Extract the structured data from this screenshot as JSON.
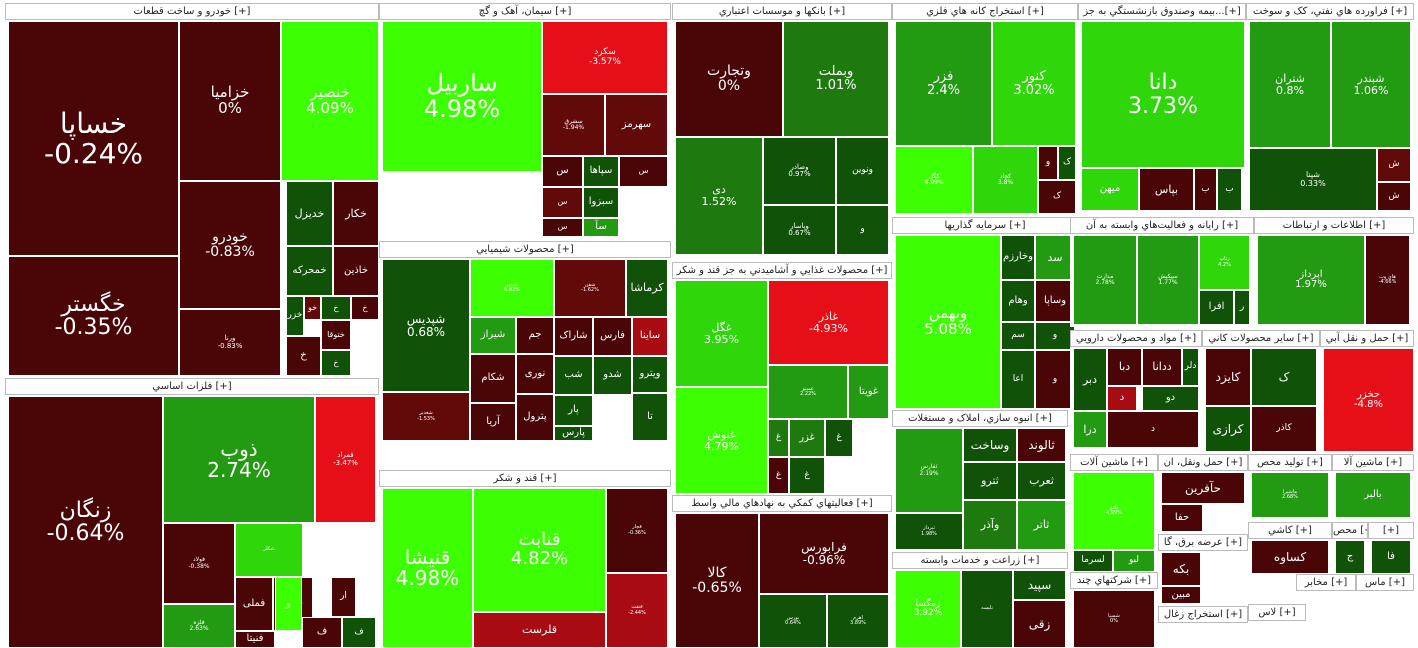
{
  "colors": {
    "g5": "#3cff00",
    "g4": "#2fd60a",
    "g3": "#229a12",
    "g2": "#1e7a0e",
    "g1": "#0f5208",
    "r1": "#4a0606",
    "r2": "#620a0a",
    "r3": "#a80c12",
    "r4": "#e60f18"
  },
  "sectors": [
    {
      "title": "خودرو و ساخت قطعات [+]",
      "tiles": [
        {
          "name": "خساپا",
          "pct": "-0.24%",
          "c": "r1"
        },
        {
          "name": "خگستر",
          "pct": "-0.35%",
          "c": "r1"
        },
        {
          "name": "خزامیا",
          "pct": "0%",
          "c": "r1"
        },
        {
          "name": "خنصیر",
          "pct": "4.09%",
          "c": "g5"
        },
        {
          "name": "خودرو",
          "pct": "-0.83%",
          "c": "r1"
        },
        {
          "name": "ورنا",
          "pct": "-0.83%",
          "c": "r1"
        },
        {
          "name": "خکار",
          "pct": "",
          "c": "r1"
        },
        {
          "name": "خدیزل",
          "pct": "",
          "c": "g1"
        },
        {
          "name": "خاذین",
          "pct": "",
          "c": "r1"
        },
        {
          "name": "خمحرکه",
          "pct": "",
          "c": "g1"
        },
        {
          "name": "خو",
          "pct": "",
          "c": "r2"
        },
        {
          "name": "خ",
          "pct": "",
          "c": "r1"
        },
        {
          "name": "خزر",
          "pct": "",
          "c": "g1"
        },
        {
          "name": "خ",
          "pct": "",
          "c": "g1"
        },
        {
          "name": "خ",
          "pct": "",
          "c": "r1"
        },
        {
          "name": "ختوقا",
          "pct": "",
          "c": "r1"
        },
        {
          "name": "خ",
          "pct": "",
          "c": "g1"
        }
      ]
    },
    {
      "title": "سیمان، آهک و گچ [+]",
      "tiles": [
        {
          "name": "ساربیل",
          "pct": "4.98%",
          "c": "g5"
        },
        {
          "name": "سکرد",
          "pct": "-3.57%",
          "c": "r4"
        },
        {
          "name": "سشرق",
          "pct": "-1.94%",
          "c": "r2"
        },
        {
          "name": "سهرمز",
          "pct": "",
          "c": "r2"
        },
        {
          "name": "س",
          "pct": "",
          "c": "r1"
        },
        {
          "name": "سپاها",
          "pct": "",
          "c": "g1"
        },
        {
          "name": "س",
          "pct": "",
          "c": "r1"
        },
        {
          "name": "س",
          "pct": "",
          "c": "r2"
        },
        {
          "name": "سبزوا",
          "pct": "",
          "c": "g1"
        },
        {
          "name": "سآ",
          "pct": "",
          "c": "g3"
        },
        {
          "name": "س",
          "pct": "",
          "c": "r1"
        }
      ]
    },
    {
      "title": "بانکها و موسسات اعتباري [+]",
      "tiles": [
        {
          "name": "وتجارت",
          "pct": "0%",
          "c": "r1"
        },
        {
          "name": "وبملت",
          "pct": "1.01%",
          "c": "g2"
        },
        {
          "name": "دی",
          "pct": "1.52%",
          "c": "g2"
        },
        {
          "name": "وصادر",
          "pct": "0.97%",
          "c": "g1"
        },
        {
          "name": "ونوین",
          "pct": "",
          "c": "g1"
        },
        {
          "name": "وپاسار",
          "pct": "0.67%",
          "c": "g1"
        },
        {
          "name": "و",
          "pct": "",
          "c": "g1"
        }
      ]
    },
    {
      "title": "استخراج کانه هاي فلزي [+]",
      "tiles": [
        {
          "name": "فزر",
          "pct": "2.4%",
          "c": "g3"
        },
        {
          "name": "کنور",
          "pct": "3.02%",
          "c": "g4"
        },
        {
          "name": "کگل",
          "pct": "4.99%",
          "c": "g5"
        },
        {
          "name": "کچاد",
          "pct": "3.8%",
          "c": "g4"
        },
        {
          "name": "و",
          "pct": "",
          "c": "r1"
        },
        {
          "name": "ک",
          "pct": "",
          "c": "g1"
        },
        {
          "name": "ک",
          "pct": "",
          "c": "r1"
        }
      ]
    },
    {
      "title": "بیمه وصندوق بازنشستگي به جز...[+]",
      "tiles": [
        {
          "name": "دانا",
          "pct": "3.73%",
          "c": "g4"
        },
        {
          "name": "میهن",
          "pct": "",
          "c": "g4"
        },
        {
          "name": "بپاس",
          "pct": "",
          "c": "r1"
        },
        {
          "name": "ب",
          "pct": "",
          "c": "r1"
        },
        {
          "name": "ب",
          "pct": "",
          "c": "g1"
        }
      ]
    },
    {
      "title": "فراورده هاي نفتي، کک و سوخت [+]",
      "tiles": [
        {
          "name": "شتران",
          "pct": "0.8%",
          "c": "g3"
        },
        {
          "name": "شبندر",
          "pct": "1.06%",
          "c": "g3"
        },
        {
          "name": "شپنا",
          "pct": "0.33%",
          "c": "g1"
        },
        {
          "name": "ش",
          "pct": "",
          "c": "r2"
        },
        {
          "name": "ش",
          "pct": "",
          "c": "r1"
        }
      ]
    },
    {
      "title": "فلزات اساسي [+]",
      "tiles": [
        {
          "name": "زنگان",
          "pct": "-0.64%",
          "c": "r1"
        },
        {
          "name": "ذوب",
          "pct": "2.74%",
          "c": "g3"
        },
        {
          "name": "فمراد",
          "pct": "-3.47%",
          "c": "r4"
        },
        {
          "name": "فولاد",
          "pct": "-0.38%",
          "c": "r1"
        },
        {
          "name": "شکلر",
          "pct": "",
          "c": "g4"
        },
        {
          "name": "فملی",
          "pct": "",
          "c": "r1"
        },
        {
          "name": "فسپا",
          "pct": "",
          "c": "r1"
        },
        {
          "name": "فلزه",
          "pct": "2.63%",
          "c": "g3"
        },
        {
          "name": "فنیتا",
          "pct": "",
          "c": "r1"
        },
        {
          "name": "و",
          "pct": "",
          "c": "g5"
        },
        {
          "name": "ار",
          "pct": "",
          "c": "r1"
        },
        {
          "name": "ف",
          "pct": "",
          "c": "r1"
        },
        {
          "name": "ف",
          "pct": "",
          "c": "g1"
        }
      ]
    },
    {
      "title": "محصولات شیمیایي [+]",
      "tiles": [
        {
          "name": "شپدیس",
          "pct": "0.68%",
          "c": "g1"
        },
        {
          "name": "شبندر",
          "pct": "6.82%",
          "c": "g5"
        },
        {
          "name": "شفن",
          "pct": "-1.62%",
          "c": "r2"
        },
        {
          "name": "کرماشا",
          "pct": "",
          "c": "g1"
        },
        {
          "name": "جم",
          "pct": "",
          "c": "r1"
        },
        {
          "name": "شیراز",
          "pct": "",
          "c": "g3"
        },
        {
          "name": "شاراک",
          "pct": "",
          "c": "r1"
        },
        {
          "name": "فارس",
          "pct": "",
          "c": "r1"
        },
        {
          "name": "ساینا",
          "pct": "",
          "c": "r3"
        },
        {
          "name": "شکام",
          "pct": "",
          "c": "r1"
        },
        {
          "name": "نوری",
          "pct": "",
          "c": "r1"
        },
        {
          "name": "شب",
          "pct": "",
          "c": "g1"
        },
        {
          "name": "شدو",
          "pct": "",
          "c": "g1"
        },
        {
          "name": "ویترو",
          "pct": "",
          "c": "g1"
        },
        {
          "name": "شغدیر",
          "pct": "-1.53%",
          "c": "r2"
        },
        {
          "name": "آریا",
          "pct": "",
          "c": "r1"
        },
        {
          "name": "پترول",
          "pct": "",
          "c": "r1"
        },
        {
          "name": "پار",
          "pct": "",
          "c": "g1"
        },
        {
          "name": "تا",
          "pct": "",
          "c": "g1"
        },
        {
          "name": "پارس",
          "pct": "",
          "c": "g1"
        }
      ]
    },
    {
      "title": "قند و شکر [+]",
      "tiles": [
        {
          "name": "قنیشا",
          "pct": "4.98%",
          "c": "g5"
        },
        {
          "name": "قنابت",
          "pct": "4.82%",
          "c": "g5"
        },
        {
          "name": "قچار",
          "pct": "-0.36%",
          "c": "r1"
        },
        {
          "name": "قنقث",
          "pct": "-2.44%",
          "c": "r3"
        },
        {
          "name": "قلرست",
          "pct": "",
          "c": "r3"
        }
      ]
    },
    {
      "title": "محصولات غذايي و آشاميدني به جز قند و شکر [+]",
      "tiles": [
        {
          "name": "غگل",
          "pct": "3.95%",
          "c": "g4"
        },
        {
          "name": "غاذر",
          "pct": "-4.93%",
          "c": "r4"
        },
        {
          "name": "غنوش",
          "pct": "4.79%",
          "c": "g5"
        },
        {
          "name": "غمینو",
          "pct": "2.22%",
          "c": "g3"
        },
        {
          "name": "غویتا",
          "pct": "",
          "c": "g3"
        },
        {
          "name": "غزر",
          "pct": "",
          "c": "g2"
        },
        {
          "name": "غ",
          "pct": "",
          "c": "g2"
        },
        {
          "name": "غ",
          "pct": "",
          "c": "g1"
        },
        {
          "name": "غ",
          "pct": "",
          "c": "r1"
        },
        {
          "name": "غ",
          "pct": "",
          "c": "g1"
        }
      ]
    },
    {
      "title": "فعاليتهاي کمکي به نهادهاي مالي واسط [+]",
      "tiles": [
        {
          "name": "کالا",
          "pct": "-0.65%",
          "c": "r1"
        },
        {
          "name": "فرابورس",
          "pct": "-0.96%",
          "c": "r1"
        },
        {
          "name": "بورس",
          "pct": "0.64%",
          "c": "g1"
        },
        {
          "name": "اهرم",
          "pct": "3.89%",
          "c": "g1"
        }
      ]
    },
    {
      "title": "سرمايه گذاريها [+]",
      "tiles": [
        {
          "name": "وبهمن",
          "pct": "5.08%",
          "c": "g5"
        },
        {
          "name": "سد",
          "pct": "",
          "c": "g3"
        },
        {
          "name": "وخارزم",
          "pct": "",
          "c": "g1"
        },
        {
          "name": "وهام",
          "pct": "",
          "c": "g1"
        },
        {
          "name": "وساپا",
          "pct": "",
          "c": "r1"
        },
        {
          "name": "سم",
          "pct": "",
          "c": "g1"
        },
        {
          "name": "و",
          "pct": "",
          "c": "g1"
        },
        {
          "name": "اعا",
          "pct": "",
          "c": "g1"
        },
        {
          "name": "و",
          "pct": "",
          "c": "r1"
        }
      ]
    },
    {
      "title": "رايانه و فعاليت‌هاي وابسته به آن [+]",
      "tiles": [
        {
          "name": "مدارت",
          "pct": "2.78%",
          "c": "g3"
        },
        {
          "name": "سپکیش",
          "pct": "1.77%",
          "c": "g3"
        },
        {
          "name": "رتاپ",
          "pct": "4.2%",
          "c": "g4"
        },
        {
          "name": "افرا",
          "pct": "",
          "c": "g1"
        },
        {
          "name": "ر",
          "pct": "",
          "c": "g1"
        }
      ]
    },
    {
      "title": "اطلاعات و ارتباطات [+]",
      "tiles": [
        {
          "name": "اپرداز",
          "pct": "1.97%",
          "c": "g3"
        },
        {
          "name": "های وب",
          "pct": "-4.66%",
          "c": "r1"
        }
      ]
    },
    {
      "title": "انبوه سازي، املاک و مستغلات [+]",
      "tiles": [
        {
          "name": "ثفارس",
          "pct": "2.19%",
          "c": "g3"
        },
        {
          "name": "ثپرداز",
          "pct": "1.98%",
          "c": "g1"
        },
        {
          "name": "وساخت",
          "pct": "",
          "c": "g1"
        },
        {
          "name": "ثالوند",
          "pct": "",
          "c": "r1"
        },
        {
          "name": "ثترو",
          "pct": "",
          "c": "g1"
        },
        {
          "name": "ثعرب",
          "pct": "",
          "c": "g1"
        },
        {
          "name": "ثاتر",
          "pct": "",
          "c": "g3"
        },
        {
          "name": "وآذر",
          "pct": "",
          "c": "g2"
        },
        {
          "name": "ث",
          "pct": "",
          "c": "g1"
        }
      ]
    },
    {
      "title": "مواد و محصولات دارويي [+]",
      "tiles": [
        {
          "name": "دبر",
          "pct": "",
          "c": "g1"
        },
        {
          "name": "دبا",
          "pct": "",
          "c": "r1"
        },
        {
          "name": "ددانا",
          "pct": "",
          "c": "r1"
        },
        {
          "name": "دلر",
          "pct": "",
          "c": "g1"
        },
        {
          "name": "د",
          "pct": "",
          "c": "r3"
        },
        {
          "name": "دو",
          "pct": "",
          "c": "g1"
        },
        {
          "name": "درا",
          "pct": "",
          "c": "g3"
        },
        {
          "name": "د",
          "pct": "",
          "c": "r1"
        }
      ]
    },
    {
      "title": "سایر محصولات کاني [+]",
      "tiles": [
        {
          "name": "کایزد",
          "pct": "",
          "c": "r1"
        },
        {
          "name": "کرازی",
          "pct": "",
          "c": "g1"
        },
        {
          "name": "ک",
          "pct": "",
          "c": "g1"
        },
        {
          "name": "کاذر",
          "pct": "",
          "c": "r1"
        }
      ]
    },
    {
      "title": "حمل و نقل آبي [+]",
      "tiles": [
        {
          "name": "حخزر",
          "pct": "-4.8%",
          "c": "r4"
        }
      ]
    },
    {
      "title": "ماشین آلات [+]",
      "tiles": [
        {
          "name": "تکنو",
          "pct": "4.99%",
          "c": "g5"
        },
        {
          "name": "لسرما",
          "pct": "",
          "c": "g1"
        },
        {
          "name": "لبو",
          "pct": "",
          "c": "g3"
        }
      ]
    },
    {
      "title": "حمل ونقل، ان [+]",
      "tiles": [
        {
          "name": "حآفرین",
          "pct": "",
          "c": "r1"
        },
        {
          "name": "حفا",
          "pct": "",
          "c": "r1"
        }
      ]
    },
    {
      "title": "تولید محص [+]",
      "tiles": [
        {
          "name": "ماشیرا",
          "pct": "2.68%",
          "c": "g3"
        }
      ]
    },
    {
      "title": "ماشین آلا [+]",
      "tiles": [
        {
          "name": "بالبر",
          "pct": "",
          "c": "g3"
        }
      ]
    },
    {
      "title": "کاشي [+]",
      "tiles": [
        {
          "name": "کساوه",
          "pct": "",
          "c": "r1"
        }
      ]
    },
    {
      "title": "محص [+]",
      "tiles": [
        {
          "name": "ج",
          "pct": "",
          "c": "g1"
        }
      ]
    },
    {
      "title": "[+]",
      "tiles": [
        {
          "name": "فا",
          "pct": "",
          "c": "g1"
        }
      ]
    },
    {
      "title": "عرضه برق، گا [+]",
      "tiles": [
        {
          "name": "بکه",
          "pct": "",
          "c": "r1"
        },
        {
          "name": "مبین",
          "pct": "",
          "c": "r1"
        }
      ]
    },
    {
      "title": "شرکتهاي چند [+]",
      "tiles": [
        {
          "name": "شسپا",
          "pct": "0%",
          "c": "r1"
        }
      ]
    },
    {
      "title": "زراعت و خدمات وابسته [+]",
      "tiles": [
        {
          "name": "زمگسا",
          "pct": "3.92%",
          "c": "g5"
        },
        {
          "name": "تلیسه",
          "pct": "",
          "c": "g1"
        },
        {
          "name": "سپید",
          "pct": "",
          "c": "g1"
        },
        {
          "name": "زقی",
          "pct": "",
          "c": "r1"
        }
      ]
    },
    {
      "title": "استخراج زغال [+]",
      "tiles": []
    },
    {
      "title": "مخابر [+]",
      "tiles": []
    },
    {
      "title": "ماس [+]",
      "tiles": []
    },
    {
      "title": "لاس [+]",
      "tiles": []
    }
  ]
}
